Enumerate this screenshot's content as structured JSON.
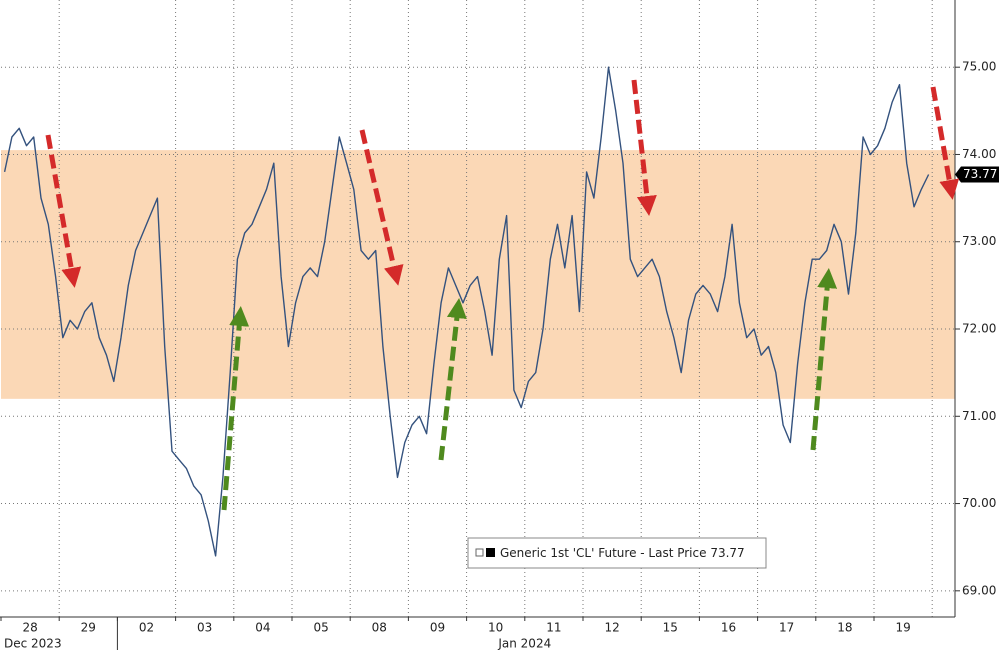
{
  "chart_data": {
    "type": "line",
    "categories": [
      "28",
      "29",
      "02",
      "03",
      "04",
      "05",
      "08",
      "09",
      "10",
      "11",
      "12",
      "15",
      "16",
      "17",
      "18",
      "19"
    ],
    "x_group_labels": [
      "Dec 2023",
      "Jan 2024"
    ],
    "series": [
      {
        "name": "Generic 1st 'CL' Future - Last Price",
        "last_price": 73.77,
        "color": "#34527e",
        "values": [
          [
            73.8,
            74.2,
            74.3,
            74.1,
            74.2,
            73.5,
            73.2,
            72.6
          ],
          [
            71.9,
            72.1,
            72.0,
            72.2,
            72.3,
            71.9,
            71.7,
            71.4
          ],
          [
            71.9,
            72.5,
            72.9,
            73.1,
            73.3,
            73.5,
            71.8,
            70.6
          ],
          [
            70.5,
            70.4,
            70.2,
            70.1,
            69.8,
            69.4,
            70.3,
            71.5
          ],
          [
            72.8,
            73.1,
            73.2,
            73.4,
            73.6,
            73.9,
            72.6,
            71.8
          ],
          [
            72.3,
            72.6,
            72.7,
            72.6,
            73.0,
            73.6,
            74.2,
            73.9
          ],
          [
            73.6,
            72.9,
            72.8,
            72.9,
            71.8,
            71.0,
            70.3,
            70.7
          ],
          [
            70.9,
            71.0,
            70.8,
            71.6,
            72.3,
            72.7,
            72.5,
            72.3
          ],
          [
            72.5,
            72.6,
            72.2,
            71.7,
            72.8,
            73.3,
            71.3,
            71.1
          ],
          [
            71.4,
            71.5,
            72.0,
            72.8,
            73.2,
            72.7,
            73.3,
            72.2
          ],
          [
            73.8,
            73.5,
            74.2,
            75.0,
            74.5,
            73.9,
            72.8,
            72.6
          ],
          [
            72.7,
            72.8,
            72.6,
            72.2,
            71.9,
            71.5,
            72.1,
            72.4
          ],
          [
            72.5,
            72.4,
            72.2,
            72.6,
            73.2,
            72.3,
            71.9,
            72.0
          ],
          [
            71.7,
            71.8,
            71.5,
            70.9,
            70.7,
            71.6,
            72.3,
            72.8
          ],
          [
            72.8,
            72.9,
            73.2,
            73.0,
            72.4,
            73.1,
            74.2,
            74.0
          ],
          [
            74.1,
            74.3,
            74.6,
            74.8,
            73.9,
            73.4,
            73.6,
            73.77
          ]
        ]
      }
    ],
    "band": [
      71.2,
      74.05
    ],
    "band_color": "#fbd8b6",
    "ylim": [
      68.7,
      75.77
    ],
    "yticks": [
      {
        "value": 69,
        "label": "69.00"
      },
      {
        "value": 70,
        "label": "70.00"
      },
      {
        "value": 71,
        "label": "71.00"
      },
      {
        "value": 72,
        "label": "72.00"
      },
      {
        "value": 73,
        "label": "73.00"
      },
      {
        "value": 74,
        "label": "74.00"
      },
      {
        "value": 75,
        "label": "75.00"
      }
    ],
    "grid": true
  }
}
